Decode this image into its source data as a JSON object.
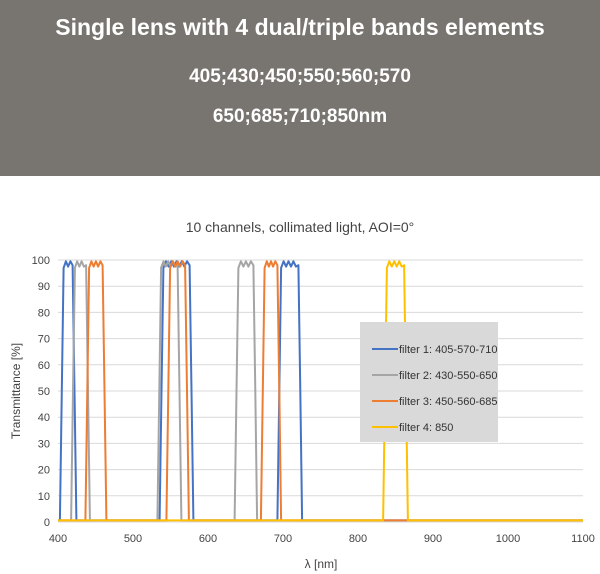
{
  "banner": {
    "title": "Single lens with 4 dual/triple bands elements",
    "line2": "405;430;450;550;560;570",
    "line3": "650;685;710;850nm",
    "background": "#787470"
  },
  "chart_data": {
    "type": "line",
    "title": "10 channels, collimated light, AOI=0°",
    "xlabel": "λ [nm]",
    "ylabel": "Transmittance [%]",
    "xlim": [
      400,
      1100
    ],
    "ylim": [
      0,
      100
    ],
    "xticks": [
      400,
      500,
      600,
      700,
      800,
      900,
      1000,
      1100
    ],
    "yticks": [
      0,
      10,
      20,
      30,
      40,
      50,
      60,
      70,
      80,
      90,
      100
    ],
    "grid": "horizontal",
    "legend_position": "right",
    "series": [
      {
        "name": "filter 1: 405-570-710",
        "color": "#4472C4",
        "bands": [
          [
            405,
            422
          ],
          [
            538,
            578
          ],
          [
            695,
            723
          ]
        ]
      },
      {
        "name": "filter 2: 430-550-650",
        "color": "#A5A5A5",
        "bands": [
          [
            420,
            440
          ],
          [
            535,
            562
          ],
          [
            638,
            663
          ]
        ]
      },
      {
        "name": "filter 3: 450-560-685",
        "color": "#ED7D31",
        "bands": [
          [
            439,
            462
          ],
          [
            547,
            572
          ],
          [
            673,
            695
          ]
        ]
      },
      {
        "name": "filter 4: 850",
        "color": "#FFC000",
        "bands": [
          [
            836,
            864
          ]
        ]
      }
    ]
  }
}
